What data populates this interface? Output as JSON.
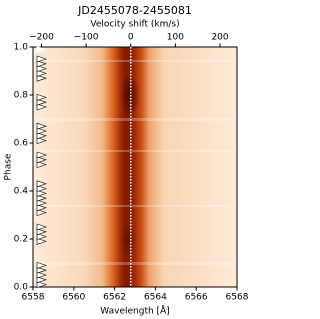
{
  "chart_data": {
    "type": "heatmap",
    "title": "JD2455078-2455081",
    "x_label": "Wavelength [Å]",
    "x2_label": "Velocity shift (km/s)",
    "y_label": "Phase",
    "xlim": [
      6558,
      6568
    ],
    "xticks": [
      6558,
      6560,
      6562,
      6564,
      6566,
      6568
    ],
    "x2lim": [
      -219,
      238
    ],
    "x2ticks": [
      {
        "value": -200,
        "label": "−200"
      },
      {
        "value": -100,
        "label": "−100"
      },
      0,
      100,
      200
    ],
    "ylim": [
      0,
      1
    ],
    "yticks": [
      {
        "value": 0,
        "label": "0.0"
      },
      0.2,
      0.4,
      0.6,
      0.8,
      {
        "value": 1,
        "label": "1.0"
      }
    ],
    "observation_phases": [
      0.01,
      0.03,
      0.05,
      0.07,
      0.09,
      0.19,
      0.21,
      0.23,
      0.25,
      0.31,
      0.33,
      0.35,
      0.37,
      0.39,
      0.41,
      0.43,
      0.51,
      0.53,
      0.55,
      0.61,
      0.63,
      0.65,
      0.67,
      0.75,
      0.77,
      0.79,
      0.87,
      0.89,
      0.91,
      0.93,
      0.95,
      0.99
    ]
  }
}
